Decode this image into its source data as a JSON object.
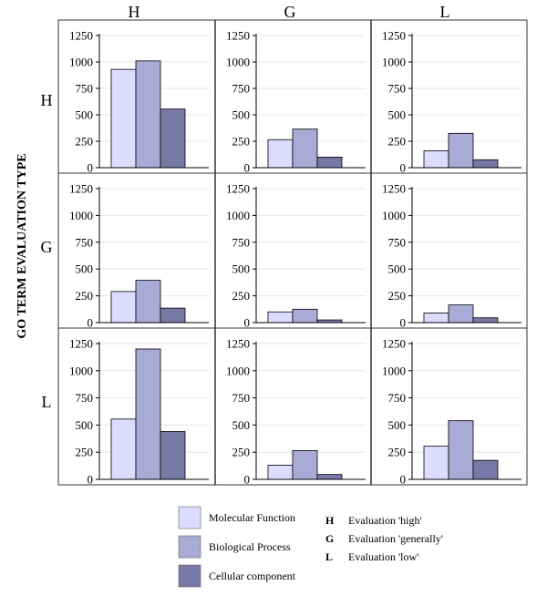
{
  "chart_data": {
    "type": "bar",
    "layout": "3x3 facet grid",
    "y_axis_label": "GO TERM EVALUATION TYPE",
    "col_headers": [
      "H",
      "G",
      "L"
    ],
    "row_headers": [
      "H",
      "G",
      "L"
    ],
    "y_ticks": [
      0,
      250,
      500,
      750,
      1000,
      1250
    ],
    "ylim": [
      0,
      1250
    ],
    "series": [
      {
        "name": "Molecular Function",
        "color": "#dcdcff"
      },
      {
        "name": "Biological Process",
        "color": "#aaaad6"
      },
      {
        "name": "Cellular component",
        "color": "#7878a6"
      }
    ],
    "panels": [
      [
        {
          "row": "H",
          "col": "H",
          "values": [
            930,
            1010,
            555
          ]
        },
        {
          "row": "H",
          "col": "G",
          "values": [
            265,
            365,
            100
          ]
        },
        {
          "row": "H",
          "col": "L",
          "values": [
            160,
            325,
            75
          ]
        }
      ],
      [
        {
          "row": "G",
          "col": "H",
          "values": [
            290,
            395,
            135
          ]
        },
        {
          "row": "G",
          "col": "G",
          "values": [
            100,
            125,
            25
          ]
        },
        {
          "row": "G",
          "col": "L",
          "values": [
            90,
            165,
            45
          ]
        }
      ],
      [
        {
          "row": "L",
          "col": "H",
          "values": [
            555,
            1200,
            440
          ]
        },
        {
          "row": "L",
          "col": "G",
          "values": [
            130,
            265,
            45
          ]
        },
        {
          "row": "L",
          "col": "L",
          "values": [
            305,
            540,
            175
          ]
        }
      ]
    ],
    "legend_keys": [
      {
        "key": "H",
        "text": "Evaluation 'high'"
      },
      {
        "key": "G",
        "text": "Evaluation 'generally'"
      },
      {
        "key": "L",
        "text": "Evaluation 'low'"
      }
    ]
  }
}
